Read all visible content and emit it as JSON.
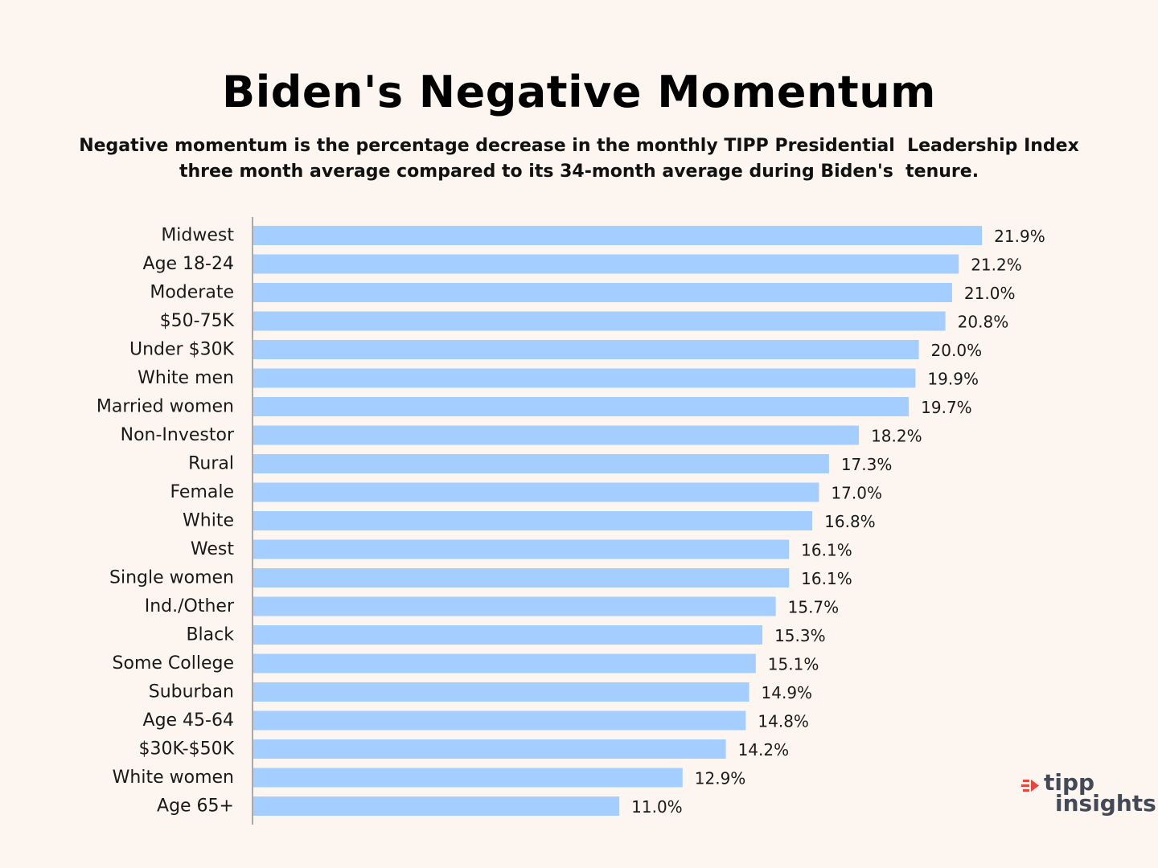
{
  "header": {
    "title": "Biden's Negative Momentum",
    "subtitle_line1": "Negative momentum is the percentage decrease in the monthly TIPP Presidential  Leadership Index",
    "subtitle_line2": "three month average compared to its 34-month average during Biden's  tenure."
  },
  "chart_data": {
    "type": "bar",
    "orientation": "horizontal",
    "title": "Biden's Negative Momentum",
    "xlabel": "",
    "ylabel": "",
    "xlim": [
      0,
      22.5
    ],
    "grid": false,
    "legend": "none",
    "bar_color": "#a3ceff",
    "axis_color": "#a9a9a9",
    "value_suffix": "%",
    "categories": [
      "Midwest",
      "Age 18-24",
      "Moderate",
      "$50-75K",
      "Under $30K",
      "White men",
      "Married women",
      "Non-Investor",
      "Rural",
      "Female",
      "White",
      "West",
      "Single women",
      "Ind./Other",
      "Black",
      "Some College",
      "Suburban",
      "Age 45-64",
      "$30K-$50K",
      "White women",
      "Age 65+"
    ],
    "values": [
      21.9,
      21.2,
      21.0,
      20.8,
      20.0,
      19.9,
      19.7,
      18.2,
      17.3,
      17.0,
      16.8,
      16.1,
      16.1,
      15.7,
      15.3,
      15.1,
      14.9,
      14.8,
      14.2,
      12.9,
      11.0
    ],
    "value_labels": [
      "21.9%",
      "21.2%",
      "21.0%",
      "20.8%",
      "20.0%",
      "19.9%",
      "19.7%",
      "18.2%",
      "17.3%",
      "17.0%",
      "16.8%",
      "16.1%",
      "16.1%",
      "15.7%",
      "15.3%",
      "15.1%",
      "14.9%",
      "14.8%",
      "14.2%",
      "12.9%",
      "11.0%"
    ]
  },
  "logo": {
    "line1": "tipp",
    "line2": "insights",
    "accent_color": "#e8453c",
    "text_color": "#444a55"
  }
}
